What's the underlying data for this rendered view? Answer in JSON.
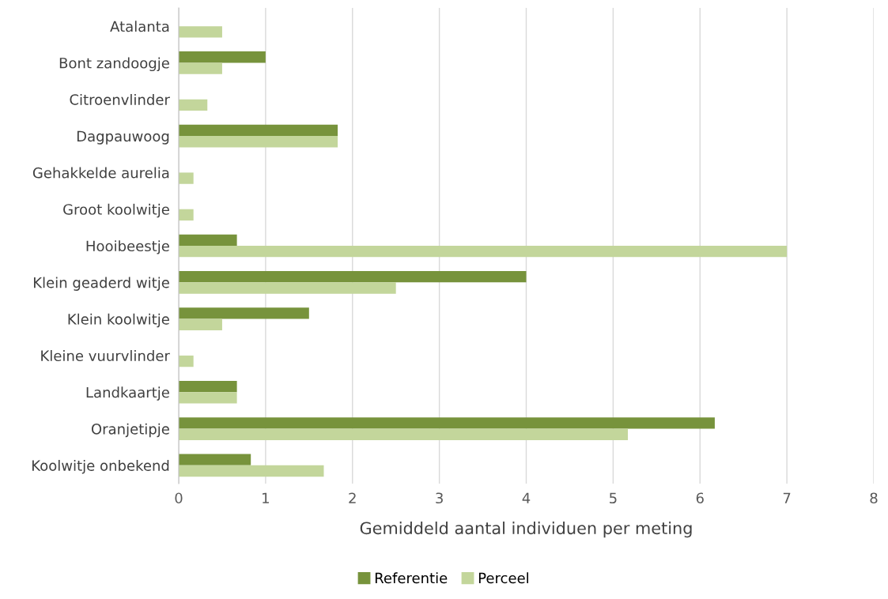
{
  "chart_data": {
    "type": "bar",
    "orientation": "horizontal",
    "categories": [
      "Atalanta",
      "Bont zandoogje",
      "Citroenvlinder",
      "Dagpauwoog",
      "Gehakkelde aurelia",
      "Groot koolwitje",
      "Hooibeestje",
      "Klein geaderd witje",
      "Klein koolwitje",
      "Kleine vuurvlinder",
      "Landkaartje",
      "Oranjetipje",
      "Koolwitje onbekend"
    ],
    "series": [
      {
        "name": "Referentie",
        "color": "#77933c",
        "values": [
          null,
          1.0,
          null,
          1.83,
          null,
          null,
          0.67,
          4.0,
          1.5,
          null,
          0.67,
          6.17,
          0.83
        ]
      },
      {
        "name": "Perceel",
        "color": "#c3d69b",
        "values": [
          0.5,
          0.5,
          0.33,
          1.83,
          0.17,
          0.17,
          7.0,
          2.5,
          0.5,
          0.17,
          0.67,
          5.17,
          1.67
        ]
      }
    ],
    "xlabel": "Gemiddeld aantal individuen per meting",
    "xlim": [
      0,
      8
    ],
    "xticks": [
      0,
      1,
      2,
      3,
      4,
      5,
      6,
      7,
      8
    ],
    "grid": "x",
    "legend": "bottom"
  }
}
